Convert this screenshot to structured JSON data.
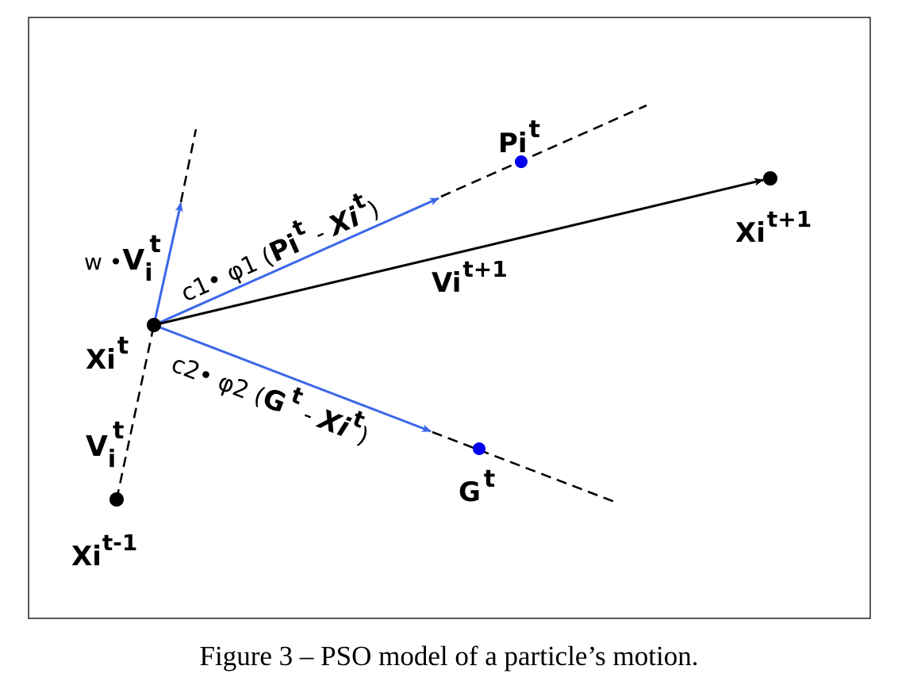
{
  "colors": {
    "vector": "#3a66e8",
    "resultant": "#000000",
    "best_point": "#0000ee",
    "point": "#000000"
  },
  "points": {
    "x_prev": {
      "base": "Xi",
      "sup": "t-1"
    },
    "x_curr": {
      "base": "Xi",
      "sup": "t"
    },
    "x_next": {
      "base": "Xi",
      "sup": "t+1"
    },
    "p_best": {
      "base": "Pi",
      "sup": "t"
    },
    "g_best": {
      "base": "G",
      "sup": "t"
    }
  },
  "vectors": {
    "v_prev": {
      "base": "V",
      "sub": "i",
      "sup": "t"
    },
    "inertia": {
      "prefix": "w •",
      "base": "V",
      "sub": "i",
      "sup": "t"
    },
    "cognitive": {
      "coef": "c1• φ1 (",
      "a": "Pi",
      "a_sup": "t",
      "minus": " - ",
      "b": "Xi",
      "b_sup": "t",
      "close": ")"
    },
    "social": {
      "coef": "c2• φ2 (",
      "a": "G",
      "a_sup": "t",
      "minus": " - ",
      "b": "Xi",
      "b_sup": "t",
      "close": ")"
    },
    "v_next": {
      "base": "Vi",
      "sup": "t+1"
    }
  },
  "caption": "Figure 3 – PSO model of a particle’s motion."
}
